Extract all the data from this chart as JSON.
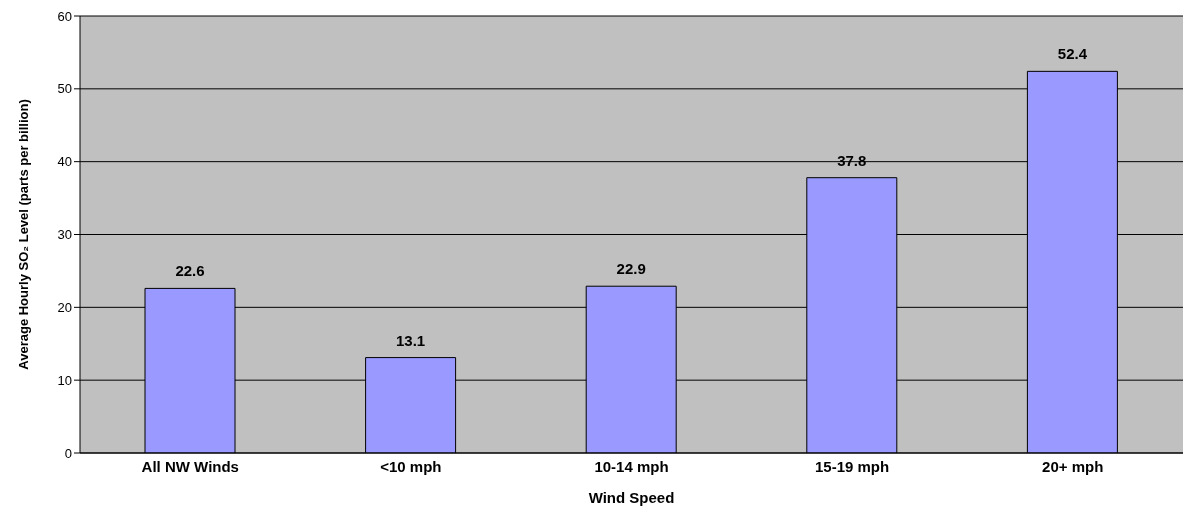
{
  "chart_data": {
    "type": "bar",
    "categories": [
      "All NW Winds",
      "<10 mph",
      "10-14 mph",
      "15-19 mph",
      "20+ mph"
    ],
    "values": [
      22.6,
      13.1,
      22.9,
      37.8,
      52.4
    ],
    "color": "#9999ff",
    "xlabel": "Wind Speed",
    "ylabel": "Average Hourly SO₂ Level (parts per billion)",
    "ylim": [
      0,
      60
    ],
    "yticks": [
      0,
      10,
      20,
      30,
      40,
      50,
      60
    ],
    "grid": "y",
    "data_labels": true
  }
}
